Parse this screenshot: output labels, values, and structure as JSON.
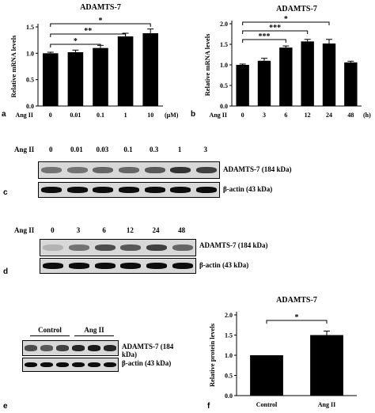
{
  "panels": {
    "a": {
      "letter": "a",
      "chart_data": {
        "type": "bar",
        "title": "ADAMTS-7",
        "ylabel": "Relative mRNA levels",
        "xlabel_prefix": "Ang II",
        "xunit": "(μM)",
        "categories": [
          "0",
          "0.01",
          "0.1",
          "1",
          "10"
        ],
        "values": [
          1.0,
          1.02,
          1.1,
          1.32,
          1.38
        ],
        "errors": [
          0.02,
          0.04,
          0.05,
          0.06,
          0.08
        ],
        "ylim": [
          0,
          1.5
        ],
        "yticks": [
          "0.0",
          "0.5",
          "1.0",
          "1.5"
        ],
        "significance": [
          {
            "from": 0,
            "to": 2,
            "label": "*"
          },
          {
            "from": 0,
            "to": 3,
            "label": "**"
          },
          {
            "from": 0,
            "to": 4,
            "label": "*"
          }
        ]
      }
    },
    "b": {
      "letter": "b",
      "chart_data": {
        "type": "bar",
        "title": "ADAMTS-7",
        "ylabel": "Relative mRNA levels",
        "xlabel_prefix": "Ang II",
        "xunit": "(h)",
        "categories": [
          "0",
          "3",
          "6",
          "12",
          "24",
          "48"
        ],
        "values": [
          1.0,
          1.1,
          1.42,
          1.57,
          1.52,
          1.06
        ],
        "errors": [
          0.02,
          0.06,
          0.04,
          0.05,
          0.1,
          0.03
        ],
        "ylim": [
          0,
          2.0
        ],
        "yticks": [
          "0.0",
          "0.5",
          "1.0",
          "1.5",
          "2.0"
        ],
        "significance": [
          {
            "from": 0,
            "to": 2,
            "label": "***"
          },
          {
            "from": 0,
            "to": 3,
            "label": "***"
          },
          {
            "from": 0,
            "to": 4,
            "label": "*"
          }
        ]
      }
    },
    "c": {
      "letter": "c",
      "treatment": "Ang II",
      "lanes": [
        "0",
        "0.01",
        "0.03",
        "0.1",
        "0.3",
        "1",
        "3"
      ],
      "target_band": "ADAMTS-7 (184 kDa)",
      "control_band": "β-actin (43 kDa)",
      "target_intensity": [
        0.55,
        0.55,
        0.6,
        0.6,
        0.65,
        0.8,
        0.75
      ],
      "control_intensity": [
        0.95,
        0.95,
        0.95,
        0.95,
        0.95,
        0.95,
        0.95
      ]
    },
    "d": {
      "letter": "d",
      "treatment": "Ang II",
      "lanes": [
        "0",
        "3",
        "6",
        "12",
        "24",
        "48"
      ],
      "target_band": "ADAMTS-7 (184 kDa)",
      "control_band": "β-actin (43 kDa)",
      "target_intensity": [
        0.3,
        0.55,
        0.7,
        0.65,
        0.75,
        0.6
      ],
      "control_intensity": [
        0.95,
        0.95,
        0.95,
        0.95,
        0.95,
        0.95
      ]
    },
    "e": {
      "letter": "e",
      "groups": [
        "Control",
        "Ang II"
      ],
      "target_band": "ADAMTS-7 (184 kDa)",
      "control_band": "β-actin (43 kDa)",
      "target_intensity": [
        0.7,
        0.65,
        0.75,
        0.85,
        0.9,
        0.85
      ],
      "control_intensity": [
        0.95,
        0.95,
        0.95,
        0.95,
        0.95,
        0.95
      ]
    },
    "f": {
      "letter": "f",
      "chart_data": {
        "type": "bar",
        "title": "ADAMTS-7",
        "ylabel": "Relative protein levels",
        "categories": [
          "Control",
          "Ang II"
        ],
        "values": [
          1.0,
          1.5
        ],
        "errors": [
          0.0,
          0.1
        ],
        "ylim": [
          0,
          2.0
        ],
        "yticks": [
          "0.0",
          "0.5",
          "1.0",
          "1.5",
          "2.0"
        ],
        "significance": [
          {
            "from": 0,
            "to": 1,
            "label": "*"
          }
        ]
      }
    }
  }
}
